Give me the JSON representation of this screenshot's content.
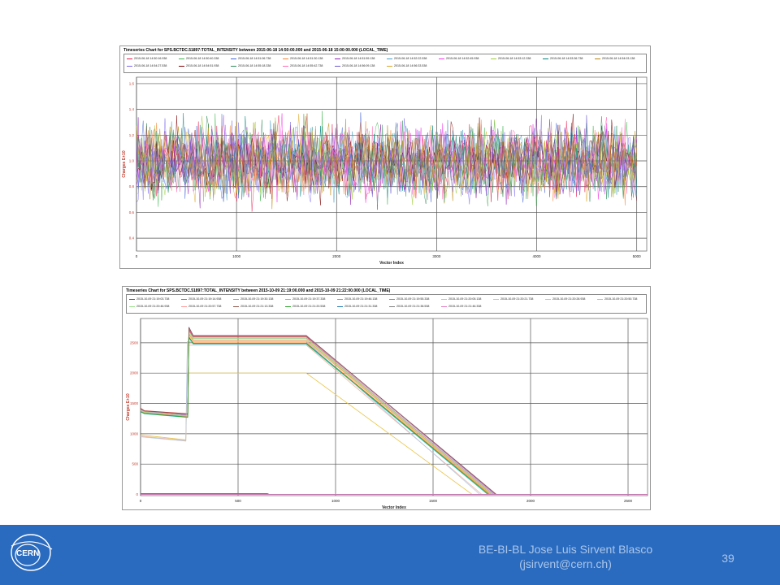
{
  "chart_data": [
    {
      "type": "line",
      "title": "Timeseries Chart for SPS.BCTDC.51897:TOTAL_INTENSITY between 2015-06-18 14:50:00.000 and 2015-06-18 15:00:00.000 (LOCAL_TIME)",
      "xlabel": "Vector Index",
      "ylabel": "Charges E+10",
      "xlim": [
        0,
        5100
      ],
      "ylim": [
        0.3,
        1.65
      ],
      "xticks": [
        0,
        1000,
        2000,
        3000,
        4000,
        5000
      ],
      "yticks": [
        0.4,
        0.6,
        0.8,
        1.0,
        1.2,
        1.4,
        1.6
      ],
      "ytick_labels": [
        "0.4",
        "0.6",
        "0.8",
        "1.0",
        "1.2",
        "1.4",
        "1.6"
      ],
      "grid": true,
      "legend_position": "top",
      "noise_model": {
        "center": 1.0,
        "spread": 0.2,
        "points_per_series": 300
      },
      "series": [
        {
          "name": "2015-06-18 14:50:16.938",
          "color": "#e6194b"
        },
        {
          "name": "2015-06-18 14:50:40.338",
          "color": "#3cb44b"
        },
        {
          "name": "2015-06-18 14:51:06.738",
          "color": "#4363d8"
        },
        {
          "name": "2015-06-18 14:51:30.138",
          "color": "#f58231"
        },
        {
          "name": "2015-06-18 14:51:59.138",
          "color": "#911eb4"
        },
        {
          "name": "2015-06-18 14:52:22.538",
          "color": "#46a0c8"
        },
        {
          "name": "2015-06-18 14:52:45.938",
          "color": "#f032e6"
        },
        {
          "name": "2015-06-18 14:53:12.338",
          "color": "#9acd32"
        },
        {
          "name": "2015-06-18 14:53:36.738",
          "color": "#008080"
        },
        {
          "name": "2015-06-18 14:54:03.138",
          "color": "#b8860b"
        },
        {
          "name": "2015-06-18 14:54:27.538",
          "color": "#7b68ee"
        },
        {
          "name": "2015-06-18 14:54:51.938",
          "color": "#800000"
        },
        {
          "name": "2015-06-18 14:55:18.338",
          "color": "#2e8b57"
        },
        {
          "name": "2015-06-18 14:55:42.738",
          "color": "#ff69b4"
        },
        {
          "name": "2015-06-18 14:56:09.138",
          "color": "#6a5acd"
        },
        {
          "name": "2015-06-18 14:56:33.538",
          "color": "#daa520"
        }
      ]
    },
    {
      "type": "line",
      "title": "Timeseries Chart for SPS.BCTDC.51897:TOTAL_INTENSITY between 2015-10-09 21:19:00.000 and 2015-10-09 21:22:00.000 (LOCAL_TIME)",
      "xlabel": "Vector Index",
      "ylabel": "Charges E+10",
      "xlim": [
        0,
        2600
      ],
      "ylim": [
        -20,
        2900
      ],
      "xticks": [
        0,
        500,
        1000,
        1500,
        2000,
        2500
      ],
      "yticks": [
        0,
        500,
        1000,
        1500,
        2000,
        2500
      ],
      "grid": true,
      "legend_position": "top",
      "series": [
        {
          "name": "2015-10-09 21:19:03.738",
          "color": "#d62728",
          "x": [
            0,
            20,
            240,
            242,
            248,
            270,
            850,
            1820,
            1825,
            2550
          ],
          "y": [
            1420,
            1380,
            1330,
            1330,
            2720,
            2600,
            2600,
            0,
            0,
            0
          ]
        },
        {
          "name": "2015-10-09 21:19:14.938",
          "color": "#9467bd",
          "x": [
            0,
            20,
            240,
            242,
            248,
            270,
            850,
            1820,
            1825,
            2550
          ],
          "y": [
            1400,
            1370,
            1310,
            1310,
            2760,
            2620,
            2620,
            0,
            0,
            0
          ]
        },
        {
          "name": "2015-10-09 21:19:30.138",
          "color": "#e377c2",
          "x": [
            0,
            20,
            240,
            242,
            248,
            270,
            850,
            1810,
            1815,
            2550
          ],
          "y": [
            1390,
            1360,
            1300,
            1300,
            2700,
            2580,
            2580,
            0,
            0,
            0
          ]
        },
        {
          "name": "2015-10-09 21:19:37.338",
          "color": "#bcbd22",
          "x": [
            0,
            20,
            240,
            242,
            248,
            270,
            850,
            1800,
            1805,
            2550
          ],
          "y": [
            1380,
            1350,
            1290,
            1290,
            2650,
            2550,
            2550,
            0,
            0,
            0
          ]
        },
        {
          "name": "2015-10-09 21:19:46.138",
          "color": "#ff7f0e",
          "x": [
            0,
            20,
            240,
            242,
            248,
            270,
            850,
            1790,
            1795,
            2550
          ],
          "y": [
            1370,
            1340,
            1280,
            1280,
            2600,
            2500,
            2500,
            0,
            0,
            0
          ]
        },
        {
          "name": "2015-10-09 21:19:55.338",
          "color": "#17becf",
          "x": [
            0,
            20,
            240,
            242,
            248,
            270,
            850,
            1780,
            1785,
            2550
          ],
          "y": [
            1360,
            1330,
            1270,
            1270,
            2580,
            2480,
            2480,
            0,
            0,
            0
          ]
        },
        {
          "name": "2015-10-09 21:20:05.138",
          "color": "#e8c547",
          "x": [
            0,
            230,
            232,
            240,
            260,
            850,
            1700,
            1705,
            2550
          ],
          "y": [
            980,
            900,
            900,
            2000,
            2000,
            2000,
            0,
            0,
            0
          ]
        },
        {
          "name": "2015-10-09 21:20:21.738",
          "color": "#f2b5a0",
          "x": [
            0,
            230,
            232,
            240,
            260,
            850,
            1750,
            1755,
            2550
          ],
          "y": [
            960,
            890,
            890,
            2460,
            2460,
            2460,
            0,
            0,
            0
          ]
        },
        {
          "name": "2015-10-09 21:20:28.938",
          "color": "#aec7e8",
          "x": [
            0,
            230,
            232,
            240,
            260,
            850,
            1740,
            1745,
            2550
          ],
          "y": [
            950,
            880,
            880,
            2520,
            2520,
            2520,
            0,
            0,
            0
          ]
        },
        {
          "name": "2015-10-09 21:20:50.738",
          "color": "#c5b0d5",
          "x": [
            0,
            20,
            240,
            242,
            248,
            270,
            850,
            1815,
            1820,
            2550
          ],
          "y": [
            1410,
            1365,
            1320,
            1320,
            2740,
            2610,
            2610,
            0,
            0,
            0
          ]
        },
        {
          "name": "2015-10-09 21:20:46.938",
          "color": "#98df8a",
          "x": [
            0,
            20,
            240,
            242,
            248,
            270,
            850,
            1805,
            1810,
            2550
          ],
          "y": [
            1385,
            1355,
            1295,
            1295,
            2680,
            2570,
            2570,
            0,
            0,
            0
          ]
        },
        {
          "name": "2015-10-09 21:20:57.738",
          "color": "#ff9896",
          "x": [
            0,
            20,
            240,
            242,
            248,
            270,
            850,
            1795,
            1800,
            2550
          ],
          "y": [
            1375,
            1345,
            1285,
            1285,
            2630,
            2530,
            2530,
            0,
            0,
            0
          ]
        },
        {
          "name": "2015-10-09 21:21:13.338",
          "color": "#8c564b",
          "x": [
            0,
            20,
            240,
            242,
            248,
            270,
            850,
            1825,
            1830,
            2550
          ],
          "y": [
            1415,
            1375,
            1325,
            1325,
            2750,
            2615,
            2615,
            0,
            0,
            0
          ]
        },
        {
          "name": "2015-10-09 21:21:20.538",
          "color": "#2ca02c",
          "x": [
            0,
            20,
            240,
            242,
            248,
            270,
            850,
            1785,
            1790,
            2550
          ],
          "y": [
            1365,
            1335,
            1275,
            1275,
            2590,
            2490,
            2490,
            0,
            0,
            0
          ]
        },
        {
          "name": "2015-10-09 21:21:31.338",
          "color": "#1f77b4",
          "x": [
            0,
            650,
            660,
            2550
          ],
          "y": [
            15,
            15,
            0,
            0
          ]
        },
        {
          "name": "2015-10-09 21:21:38.538",
          "color": "#7f7f7f",
          "x": [
            0,
            650,
            660,
            2550
          ],
          "y": [
            10,
            10,
            0,
            0
          ]
        },
        {
          "name": "2015-10-09 21:21:46.338",
          "color": "#e377c2",
          "x": [
            0,
            2600
          ],
          "y": [
            0,
            0
          ]
        }
      ]
    }
  ],
  "footer": {
    "line1": "BE-BI-BL Jose Luis Sirvent Blasco",
    "line2": "(jsirvent@cern.ch)",
    "page_number": "39",
    "logo_text": "CERN",
    "background": "#2a6bbf"
  }
}
